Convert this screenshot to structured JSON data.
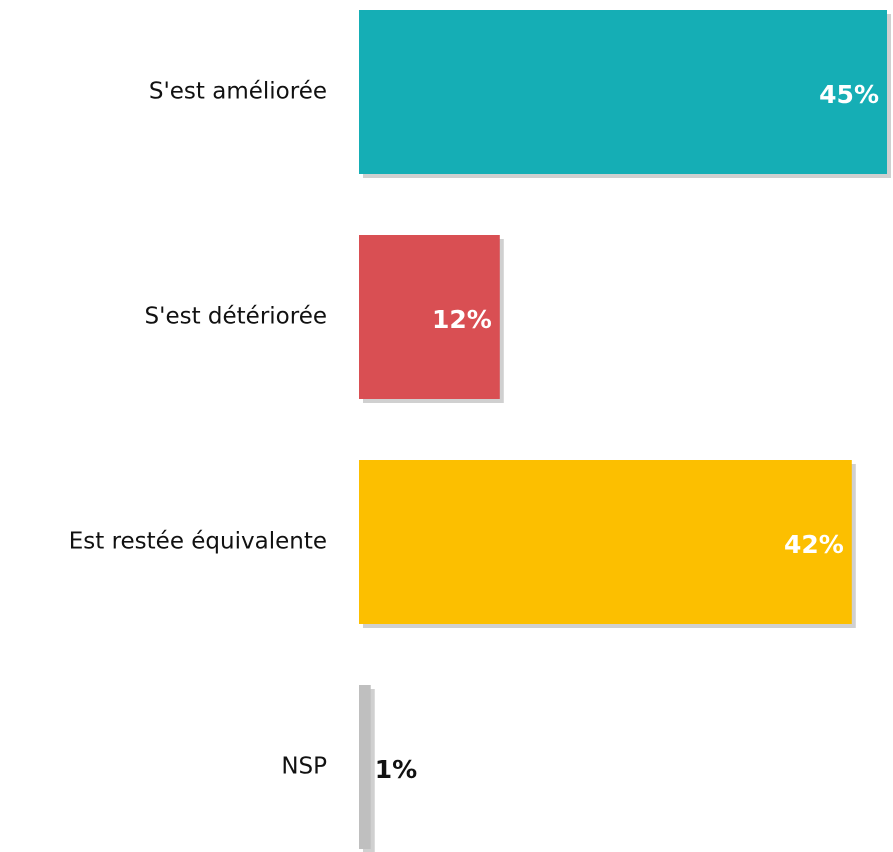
{
  "chart_data": {
    "type": "hbar",
    "categories": [
      "S'est améliorée",
      "S'est détériorée",
      "Est restée équivalente",
      "NSP"
    ],
    "values": [
      45,
      12,
      42,
      1
    ],
    "value_labels": [
      "45%",
      "12%",
      "42%",
      "1%"
    ],
    "colors": [
      "#15aeb5",
      "#d94f53",
      "#fcbf00",
      "#bfbfbf"
    ]
  }
}
